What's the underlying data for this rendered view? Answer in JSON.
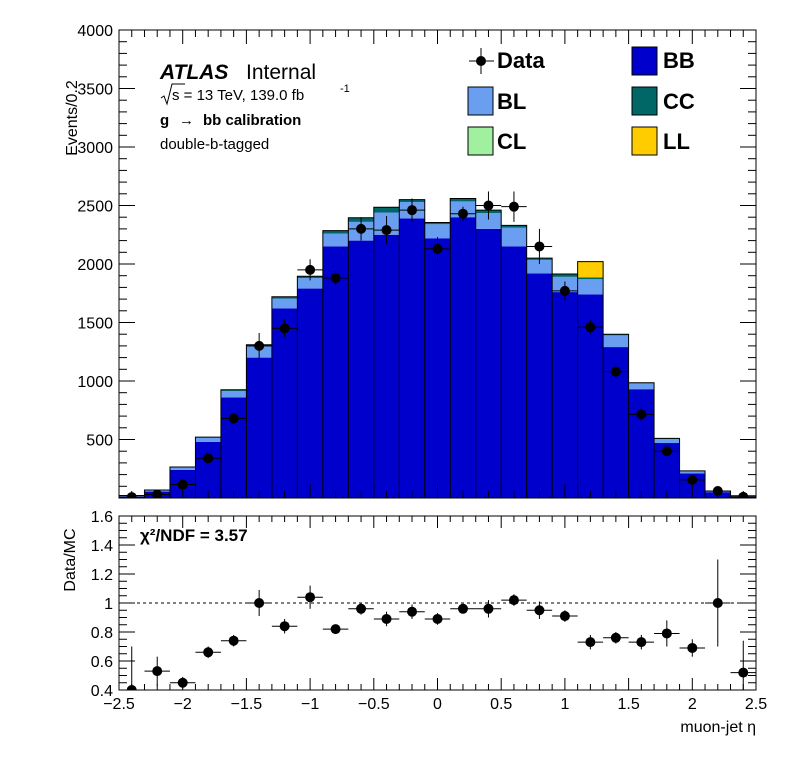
{
  "chart_data": [
    {
      "type": "bar",
      "stacked": true,
      "panel": "main",
      "ylabel": "Events/0.2",
      "ylim": [
        0,
        4000
      ],
      "yticks": [
        500,
        1000,
        1500,
        2000,
        2500,
        3000,
        3500,
        4000
      ],
      "xlim": [
        -2.5,
        2.5
      ],
      "annotations": {
        "experiment": "ATLAS",
        "status": "Internal",
        "energy_text": "s = 13 TeV, 139.0 fb",
        "lumi_exp": "-1",
        "process_g": "g",
        "process_arrow": "→",
        "process_rest": "bb calibration",
        "selection": "double-b-tagged"
      },
      "bin_edges": [
        -2.5,
        -2.3,
        -2.1,
        -1.9,
        -1.7,
        -1.5,
        -1.3,
        -1.1,
        -0.9,
        -0.7,
        -0.5,
        -0.3,
        -0.1,
        0.1,
        0.3,
        0.5,
        0.7,
        0.9,
        1.1,
        1.3,
        1.5,
        1.7,
        1.9,
        2.1,
        2.3,
        2.5
      ],
      "series": [
        {
          "name": "BB",
          "color": "#0000cc",
          "values": [
            15,
            55,
            240,
            480,
            860,
            1200,
            1620,
            1790,
            2150,
            2200,
            2250,
            2390,
            2220,
            2400,
            2300,
            2150,
            1920,
            1760,
            1740,
            1290,
            930,
            470,
            210,
            50,
            15
          ]
        },
        {
          "name": "BL",
          "color": "#6a9ef0",
          "values": [
            5,
            10,
            20,
            35,
            55,
            95,
            85,
            90,
            110,
            160,
            190,
            140,
            120,
            135,
            135,
            160,
            115,
            130,
            130,
            100,
            50,
            35,
            20,
            8,
            3
          ]
        },
        {
          "name": "CC",
          "color": "#006666",
          "values": [
            1,
            3,
            5,
            5,
            10,
            15,
            15,
            15,
            25,
            35,
            45,
            20,
            15,
            25,
            25,
            20,
            15,
            25,
            15,
            10,
            5,
            5,
            2,
            1,
            1
          ]
        },
        {
          "name": "CL",
          "color": "#a0f0a0",
          "values": [
            0,
            0,
            0,
            0,
            0,
            0,
            0,
            0,
            0,
            0,
            0,
            0,
            0,
            0,
            0,
            0,
            0,
            0,
            0,
            0,
            0,
            0,
            0,
            0,
            0
          ]
        },
        {
          "name": "LL",
          "color": "#ffcc00",
          "values": [
            0,
            0,
            0,
            0,
            0,
            0,
            0,
            0,
            0,
            0,
            0,
            0,
            0,
            0,
            0,
            0,
            0,
            0,
            135,
            0,
            0,
            0,
            0,
            0,
            0
          ]
        }
      ],
      "data": {
        "name": "Data",
        "x": [
          -2.4,
          -2.2,
          -2.0,
          -1.8,
          -1.6,
          -1.4,
          -1.2,
          -1.0,
          -0.8,
          -0.6,
          -0.4,
          -0.2,
          0.0,
          0.2,
          0.4,
          0.6,
          0.8,
          1.0,
          1.2,
          1.4,
          1.6,
          1.8,
          2.0,
          2.2,
          2.4
        ],
        "y": [
          8,
          30,
          115,
          340,
          680,
          1300,
          1450,
          1950,
          1880,
          2300,
          2290,
          2460,
          2130,
          2430,
          2500,
          2490,
          2150,
          1770,
          1460,
          1080,
          715,
          400,
          155,
          60,
          10
        ],
        "yerr": [
          5,
          10,
          20,
          40,
          50,
          110,
          80,
          90,
          60,
          100,
          120,
          100,
          100,
          60,
          120,
          130,
          150,
          80,
          60,
          50,
          55,
          35,
          20,
          15,
          5
        ]
      },
      "legend": [
        "Data",
        "BB",
        "BL",
        "CC",
        "CL",
        "LL"
      ],
      "legend_placement": "top-right"
    },
    {
      "type": "scatter",
      "panel": "ratio",
      "ylabel": "Data/MC",
      "xlabel": "muon-jet η",
      "ylim": [
        0.4,
        1.6
      ],
      "yticks": [
        "0.4",
        "0.6",
        "0.8",
        "1",
        "1.2",
        "1.4",
        "1.6"
      ],
      "xlim": [
        -2.5,
        2.5
      ],
      "xticks": [
        "−2.5",
        "−2",
        "−1.5",
        "−1",
        "−0.5",
        "0",
        "0.5",
        "1",
        "1.5",
        "2",
        "2.5"
      ],
      "reference_line": 1,
      "chi2_text": "χ²/NDF = 3.57",
      "x": [
        -2.4,
        -2.2,
        -2.0,
        -1.8,
        -1.6,
        -1.4,
        -1.2,
        -1.0,
        -0.8,
        -0.6,
        -0.4,
        -0.2,
        0.0,
        0.2,
        0.4,
        0.6,
        0.8,
        1.0,
        1.2,
        1.4,
        1.6,
        1.8,
        2.0,
        2.2,
        2.4
      ],
      "y": [
        0.4,
        0.53,
        0.45,
        0.66,
        0.74,
        1.0,
        0.84,
        1.04,
        0.82,
        0.96,
        0.89,
        0.94,
        0.89,
        0.96,
        0.96,
        1.02,
        0.95,
        0.91,
        0.73,
        0.76,
        0.73,
        0.79,
        0.69,
        1.0,
        0.52
      ],
      "yerr": [
        0.3,
        0.1,
        0.04,
        0.04,
        0.04,
        0.09,
        0.05,
        0.08,
        0.03,
        0.04,
        0.05,
        0.05,
        0.04,
        0.03,
        0.06,
        0.04,
        0.06,
        0.04,
        0.05,
        0.04,
        0.05,
        0.09,
        0.06,
        0.3,
        0.22
      ]
    }
  ]
}
